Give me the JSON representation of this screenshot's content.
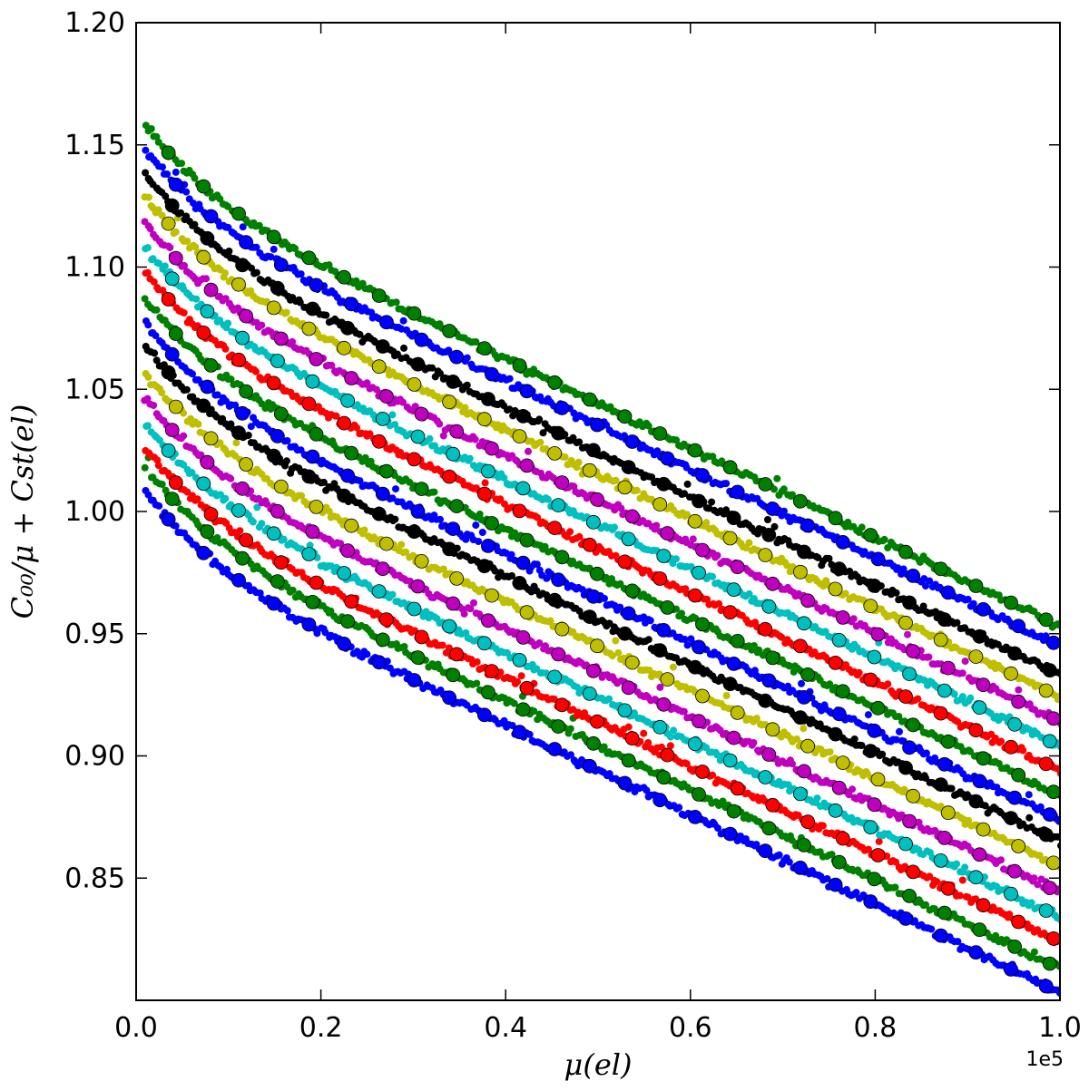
{
  "chart_data": {
    "type": "scatter",
    "title": "",
    "xlabel": "μ(el)",
    "ylabel": "C₀₀/μ + Cst(el)",
    "x_offset_label": "1e5",
    "xlim": [
      0.0,
      1.0
    ],
    "ylim": [
      0.8,
      1.2
    ],
    "x_ticks": [
      "0.0",
      "0.2",
      "0.4",
      "0.6",
      "0.8",
      "1.0"
    ],
    "y_ticks": [
      "0.85",
      "0.90",
      "0.95",
      "1.00",
      "1.05",
      "1.10",
      "1.15",
      "1.20"
    ],
    "x_tick_values": [
      0.0,
      0.2,
      0.4,
      0.6,
      0.8,
      1.0
    ],
    "y_tick_values": [
      0.85,
      0.9,
      0.95,
      1.0,
      1.05,
      1.1,
      1.15,
      1.2
    ],
    "grid": false,
    "legend": "none",
    "marker_style": "small dots per series with larger circular markers (black edge) at regular intervals",
    "x_start": 0.01,
    "x_end": 1.0,
    "series": [
      {
        "color": "#0000ff",
        "y_start": 1.008,
        "y_end": 0.803
      },
      {
        "color": "#008000",
        "y_start": 1.018,
        "y_end": 0.813
      },
      {
        "color": "#ff0000",
        "y_start": 1.026,
        "y_end": 0.824
      },
      {
        "color": "#00bfbf",
        "y_start": 1.036,
        "y_end": 0.834
      },
      {
        "color": "#bf00bf",
        "y_start": 1.046,
        "y_end": 0.844
      },
      {
        "color": "#bfbf00",
        "y_start": 1.057,
        "y_end": 0.855
      },
      {
        "color": "#000000",
        "y_start": 1.068,
        "y_end": 0.865
      },
      {
        "color": "#0000ff",
        "y_start": 1.077,
        "y_end": 0.874
      },
      {
        "color": "#008000",
        "y_start": 1.087,
        "y_end": 0.884
      },
      {
        "color": "#ff0000",
        "y_start": 1.098,
        "y_end": 0.894
      },
      {
        "color": "#00bfbf",
        "y_start": 1.108,
        "y_end": 0.904
      },
      {
        "color": "#bf00bf",
        "y_start": 1.118,
        "y_end": 0.914
      },
      {
        "color": "#bfbf00",
        "y_start": 1.129,
        "y_end": 0.924
      },
      {
        "color": "#000000",
        "y_start": 1.138,
        "y_end": 0.933
      },
      {
        "color": "#0000ff",
        "y_start": 1.148,
        "y_end": 0.945
      },
      {
        "color": "#008000",
        "y_start": 1.158,
        "y_end": 0.953
      }
    ]
  }
}
